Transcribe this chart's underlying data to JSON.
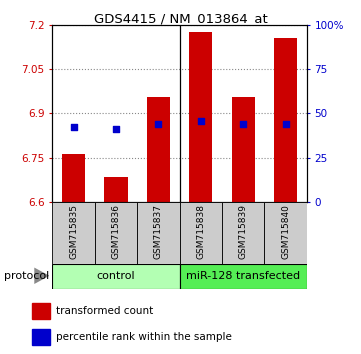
{
  "title": "GDS4415 / NM_013864_at",
  "samples": [
    "GSM715835",
    "GSM715836",
    "GSM715837",
    "GSM715838",
    "GSM715839",
    "GSM715840"
  ],
  "bar_base": 6.6,
  "bar_tops": [
    6.762,
    6.685,
    6.955,
    7.175,
    6.955,
    7.155
  ],
  "percentile_values": [
    6.855,
    6.848,
    6.865,
    6.875,
    6.865,
    6.865
  ],
  "ylim_left": [
    6.6,
    7.2
  ],
  "ylim_right": [
    0,
    100
  ],
  "yticks_left": [
    6.6,
    6.75,
    6.9,
    7.05,
    7.2
  ],
  "ytick_labels_left": [
    "6.6",
    "6.75",
    "6.9",
    "7.05",
    "7.2"
  ],
  "yticks_right": [
    0,
    25,
    50,
    75,
    100
  ],
  "ytick_labels_right": [
    "0",
    "25",
    "50",
    "75",
    "100%"
  ],
  "bar_color": "#cc0000",
  "blue_color": "#0000cc",
  "control_label": "control",
  "transfected_label": "miR-128 transfected",
  "control_bg": "#b3ffb3",
  "transfected_bg": "#55ee55",
  "group_label": "protocol",
  "legend_bar_label": "transformed count",
  "legend_blue_label": "percentile rank within the sample",
  "bar_width": 0.55,
  "grid_color": "#888888",
  "sample_bg": "#cccccc",
  "arrow_color": "#888888"
}
